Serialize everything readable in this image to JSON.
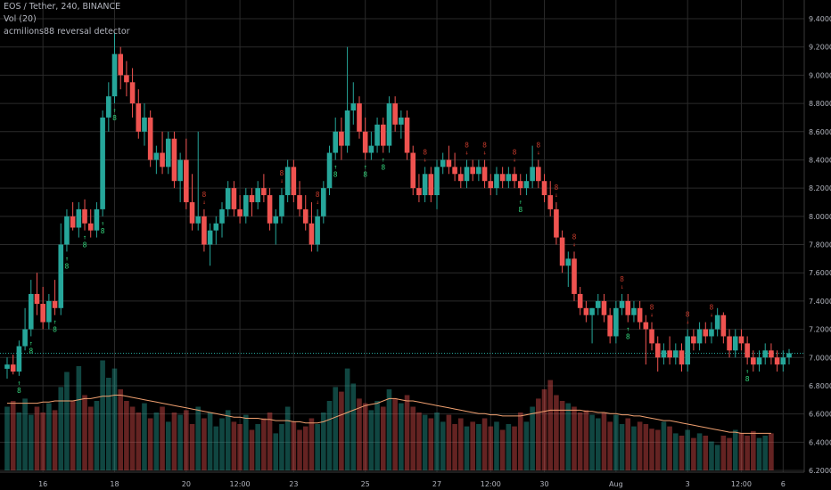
{
  "chart_data": {
    "type": "candlestick",
    "symbol_line": "EOS / Tether, 240, BINANCE",
    "indicators": [
      "Vol (20)",
      "acmilions88 reversal detector"
    ],
    "x_tick_labels": [
      "16",
      "18",
      "20",
      "12:00",
      "23",
      "25",
      "27",
      "12:00",
      "30",
      "Aug",
      "3",
      "12:00",
      "6"
    ],
    "y_tick_labels": [
      "6.2000",
      "6.4000",
      "6.6000",
      "6.8000",
      "7.0000",
      "7.2000",
      "7.4000",
      "7.6000",
      "7.8000",
      "8.0000",
      "8.2000",
      "8.4000",
      "8.6000",
      "8.8000",
      "9.0000",
      "9.2000",
      "9.4000"
    ],
    "ylim": [
      6.2,
      9.4
    ],
    "current_price_level": 7.03,
    "signal_labels": {
      "buy": "8",
      "sell": "8"
    },
    "colors": {
      "up": "#26a69a",
      "down": "#ef5350",
      "grid": "#2a2a2a",
      "axis_text": "#b2b5be",
      "vol_ma": "#f0a070",
      "price_line": "#26a69a",
      "buy_label": "#33d17a",
      "sell_label": "#c0392b"
    },
    "candles": [
      {
        "o": 6.92,
        "h": 7.0,
        "l": 6.85,
        "c": 6.95
      },
      {
        "o": 6.95,
        "h": 7.02,
        "l": 6.88,
        "c": 6.9
      },
      {
        "o": 6.9,
        "h": 7.12,
        "l": 6.87,
        "c": 7.08
      },
      {
        "o": 7.08,
        "h": 7.35,
        "l": 7.05,
        "c": 7.2
      },
      {
        "o": 7.2,
        "h": 7.55,
        "l": 7.15,
        "c": 7.45
      },
      {
        "o": 7.45,
        "h": 7.6,
        "l": 7.3,
        "c": 7.38
      },
      {
        "o": 7.38,
        "h": 7.5,
        "l": 7.2,
        "c": 7.25
      },
      {
        "o": 7.25,
        "h": 7.45,
        "l": 7.2,
        "c": 7.4
      },
      {
        "o": 7.4,
        "h": 7.55,
        "l": 7.3,
        "c": 7.35
      },
      {
        "o": 7.35,
        "h": 7.95,
        "l": 7.3,
        "c": 7.8
      },
      {
        "o": 7.8,
        "h": 8.05,
        "l": 7.75,
        "c": 8.0
      },
      {
        "o": 8.0,
        "h": 8.1,
        "l": 7.9,
        "c": 7.92
      },
      {
        "o": 7.92,
        "h": 8.1,
        "l": 7.85,
        "c": 8.05
      },
      {
        "o": 8.05,
        "h": 8.12,
        "l": 7.9,
        "c": 7.95
      },
      {
        "o": 7.95,
        "h": 8.05,
        "l": 7.85,
        "c": 7.9
      },
      {
        "o": 7.9,
        "h": 8.1,
        "l": 7.85,
        "c": 8.05
      },
      {
        "o": 8.05,
        "h": 8.75,
        "l": 8.0,
        "c": 8.7
      },
      {
        "o": 8.7,
        "h": 8.95,
        "l": 8.6,
        "c": 8.85
      },
      {
        "o": 8.85,
        "h": 9.3,
        "l": 8.8,
        "c": 9.15
      },
      {
        "o": 9.15,
        "h": 9.2,
        "l": 8.9,
        "c": 9.0
      },
      {
        "o": 9.0,
        "h": 9.1,
        "l": 8.85,
        "c": 8.95
      },
      {
        "o": 8.95,
        "h": 9.05,
        "l": 8.7,
        "c": 8.8
      },
      {
        "o": 8.8,
        "h": 8.9,
        "l": 8.55,
        "c": 8.6
      },
      {
        "o": 8.6,
        "h": 8.8,
        "l": 8.5,
        "c": 8.7
      },
      {
        "o": 8.7,
        "h": 8.75,
        "l": 8.35,
        "c": 8.4
      },
      {
        "o": 8.4,
        "h": 8.5,
        "l": 8.3,
        "c": 8.45
      },
      {
        "o": 8.45,
        "h": 8.6,
        "l": 8.3,
        "c": 8.35
      },
      {
        "o": 8.35,
        "h": 8.6,
        "l": 8.3,
        "c": 8.55
      },
      {
        "o": 8.55,
        "h": 8.6,
        "l": 8.2,
        "c": 8.25
      },
      {
        "o": 8.25,
        "h": 8.45,
        "l": 8.1,
        "c": 8.4
      },
      {
        "o": 8.4,
        "h": 8.55,
        "l": 8.05,
        "c": 8.1
      },
      {
        "o": 8.1,
        "h": 8.3,
        "l": 7.9,
        "c": 7.95
      },
      {
        "o": 7.95,
        "h": 8.6,
        "l": 7.9,
        "c": 8.0
      },
      {
        "o": 8.0,
        "h": 8.05,
        "l": 7.75,
        "c": 7.8
      },
      {
        "o": 7.8,
        "h": 7.95,
        "l": 7.65,
        "c": 7.9
      },
      {
        "o": 7.9,
        "h": 8.0,
        "l": 7.8,
        "c": 7.95
      },
      {
        "o": 7.95,
        "h": 8.1,
        "l": 7.85,
        "c": 8.05
      },
      {
        "o": 8.05,
        "h": 8.25,
        "l": 8.0,
        "c": 8.2
      },
      {
        "o": 8.2,
        "h": 8.25,
        "l": 8.0,
        "c": 8.05
      },
      {
        "o": 8.05,
        "h": 8.15,
        "l": 7.95,
        "c": 8.0
      },
      {
        "o": 8.0,
        "h": 8.2,
        "l": 7.95,
        "c": 8.15
      },
      {
        "o": 8.15,
        "h": 8.2,
        "l": 8.0,
        "c": 8.1
      },
      {
        "o": 8.1,
        "h": 8.25,
        "l": 8.05,
        "c": 8.2
      },
      {
        "o": 8.2,
        "h": 8.3,
        "l": 8.1,
        "c": 8.15
      },
      {
        "o": 8.15,
        "h": 8.2,
        "l": 7.9,
        "c": 7.95
      },
      {
        "o": 7.95,
        "h": 8.05,
        "l": 7.8,
        "c": 8.0
      },
      {
        "o": 8.0,
        "h": 8.2,
        "l": 7.95,
        "c": 8.15
      },
      {
        "o": 8.15,
        "h": 8.4,
        "l": 8.1,
        "c": 8.35
      },
      {
        "o": 8.35,
        "h": 8.4,
        "l": 8.1,
        "c": 8.15
      },
      {
        "o": 8.15,
        "h": 8.25,
        "l": 8.0,
        "c": 8.05
      },
      {
        "o": 8.05,
        "h": 8.15,
        "l": 7.9,
        "c": 7.95
      },
      {
        "o": 7.95,
        "h": 8.1,
        "l": 7.75,
        "c": 7.8
      },
      {
        "o": 7.8,
        "h": 8.05,
        "l": 7.75,
        "c": 8.0
      },
      {
        "o": 8.0,
        "h": 8.25,
        "l": 7.95,
        "c": 8.2
      },
      {
        "o": 8.2,
        "h": 8.5,
        "l": 8.15,
        "c": 8.45
      },
      {
        "o": 8.45,
        "h": 8.7,
        "l": 8.4,
        "c": 8.6
      },
      {
        "o": 8.6,
        "h": 8.7,
        "l": 8.4,
        "c": 8.5
      },
      {
        "o": 8.5,
        "h": 9.2,
        "l": 8.45,
        "c": 8.75
      },
      {
        "o": 8.75,
        "h": 8.95,
        "l": 8.65,
        "c": 8.8
      },
      {
        "o": 8.8,
        "h": 8.85,
        "l": 8.55,
        "c": 8.6
      },
      {
        "o": 8.6,
        "h": 8.7,
        "l": 8.4,
        "c": 8.45
      },
      {
        "o": 8.45,
        "h": 8.6,
        "l": 8.4,
        "c": 8.5
      },
      {
        "o": 8.5,
        "h": 8.7,
        "l": 8.45,
        "c": 8.65
      },
      {
        "o": 8.65,
        "h": 8.7,
        "l": 8.45,
        "c": 8.5
      },
      {
        "o": 8.5,
        "h": 8.85,
        "l": 8.45,
        "c": 8.8
      },
      {
        "o": 8.8,
        "h": 8.85,
        "l": 8.6,
        "c": 8.65
      },
      {
        "o": 8.65,
        "h": 8.75,
        "l": 8.55,
        "c": 8.7
      },
      {
        "o": 8.7,
        "h": 8.75,
        "l": 8.4,
        "c": 8.45
      },
      {
        "o": 8.45,
        "h": 8.5,
        "l": 8.15,
        "c": 8.2
      },
      {
        "o": 8.2,
        "h": 8.3,
        "l": 8.1,
        "c": 8.15
      },
      {
        "o": 8.15,
        "h": 8.35,
        "l": 8.1,
        "c": 8.3
      },
      {
        "o": 8.3,
        "h": 8.35,
        "l": 8.1,
        "c": 8.15
      },
      {
        "o": 8.15,
        "h": 8.4,
        "l": 8.05,
        "c": 8.35
      },
      {
        "o": 8.35,
        "h": 8.45,
        "l": 8.3,
        "c": 8.4
      },
      {
        "o": 8.4,
        "h": 8.5,
        "l": 8.3,
        "c": 8.35
      },
      {
        "o": 8.35,
        "h": 8.45,
        "l": 8.25,
        "c": 8.3
      },
      {
        "o": 8.3,
        "h": 8.35,
        "l": 8.2,
        "c": 8.25
      },
      {
        "o": 8.25,
        "h": 8.4,
        "l": 8.2,
        "c": 8.35
      },
      {
        "o": 8.35,
        "h": 8.4,
        "l": 8.25,
        "c": 8.3
      },
      {
        "o": 8.3,
        "h": 8.4,
        "l": 8.25,
        "c": 8.35
      },
      {
        "o": 8.35,
        "h": 8.4,
        "l": 8.2,
        "c": 8.25
      },
      {
        "o": 8.25,
        "h": 8.3,
        "l": 8.15,
        "c": 8.2
      },
      {
        "o": 8.2,
        "h": 8.35,
        "l": 8.15,
        "c": 8.3
      },
      {
        "o": 8.3,
        "h": 8.35,
        "l": 8.2,
        "c": 8.25
      },
      {
        "o": 8.25,
        "h": 8.35,
        "l": 8.2,
        "c": 8.3
      },
      {
        "o": 8.3,
        "h": 8.35,
        "l": 8.2,
        "c": 8.25
      },
      {
        "o": 8.25,
        "h": 8.3,
        "l": 8.15,
        "c": 8.2
      },
      {
        "o": 8.2,
        "h": 8.3,
        "l": 8.15,
        "c": 8.25
      },
      {
        "o": 8.25,
        "h": 8.5,
        "l": 8.2,
        "c": 8.35
      },
      {
        "o": 8.35,
        "h": 8.4,
        "l": 8.2,
        "c": 8.25
      },
      {
        "o": 8.25,
        "h": 8.3,
        "l": 8.1,
        "c": 8.15
      },
      {
        "o": 8.15,
        "h": 8.25,
        "l": 8.0,
        "c": 8.05
      },
      {
        "o": 8.05,
        "h": 8.1,
        "l": 7.8,
        "c": 7.85
      },
      {
        "o": 7.85,
        "h": 7.9,
        "l": 7.6,
        "c": 7.65
      },
      {
        "o": 7.65,
        "h": 7.75,
        "l": 7.5,
        "c": 7.7
      },
      {
        "o": 7.7,
        "h": 7.75,
        "l": 7.4,
        "c": 7.45
      },
      {
        "o": 7.45,
        "h": 7.5,
        "l": 7.3,
        "c": 7.35
      },
      {
        "o": 7.35,
        "h": 7.4,
        "l": 7.25,
        "c": 7.3
      },
      {
        "o": 7.3,
        "h": 7.35,
        "l": 7.1,
        "c": 7.35
      },
      {
        "o": 7.35,
        "h": 7.45,
        "l": 7.3,
        "c": 7.4
      },
      {
        "o": 7.4,
        "h": 7.45,
        "l": 7.25,
        "c": 7.3
      },
      {
        "o": 7.3,
        "h": 7.35,
        "l": 7.1,
        "c": 7.15
      },
      {
        "o": 7.15,
        "h": 7.4,
        "l": 7.1,
        "c": 7.35
      },
      {
        "o": 7.35,
        "h": 7.45,
        "l": 7.3,
        "c": 7.4
      },
      {
        "o": 7.4,
        "h": 7.45,
        "l": 7.25,
        "c": 7.3
      },
      {
        "o": 7.3,
        "h": 7.4,
        "l": 7.25,
        "c": 7.35
      },
      {
        "o": 7.35,
        "h": 7.4,
        "l": 7.2,
        "c": 7.25
      },
      {
        "o": 7.25,
        "h": 7.3,
        "l": 6.95,
        "c": 7.2
      },
      {
        "o": 7.2,
        "h": 7.25,
        "l": 7.05,
        "c": 7.1
      },
      {
        "o": 7.1,
        "h": 7.15,
        "l": 6.9,
        "c": 7.0
      },
      {
        "o": 7.0,
        "h": 7.1,
        "l": 6.95,
        "c": 7.05
      },
      {
        "o": 7.05,
        "h": 7.15,
        "l": 6.95,
        "c": 7.0
      },
      {
        "o": 7.0,
        "h": 7.1,
        "l": 6.95,
        "c": 7.05
      },
      {
        "o": 7.05,
        "h": 7.1,
        "l": 6.9,
        "c": 6.95
      },
      {
        "o": 6.95,
        "h": 7.2,
        "l": 6.9,
        "c": 7.15
      },
      {
        "o": 7.15,
        "h": 7.2,
        "l": 7.05,
        "c": 7.1
      },
      {
        "o": 7.1,
        "h": 7.25,
        "l": 7.05,
        "c": 7.2
      },
      {
        "o": 7.2,
        "h": 7.25,
        "l": 7.1,
        "c": 7.15
      },
      {
        "o": 7.15,
        "h": 7.25,
        "l": 7.1,
        "c": 7.2
      },
      {
        "o": 7.2,
        "h": 7.35,
        "l": 7.15,
        "c": 7.3
      },
      {
        "o": 7.3,
        "h": 7.32,
        "l": 7.1,
        "c": 7.15
      },
      {
        "o": 7.15,
        "h": 7.2,
        "l": 7.0,
        "c": 7.05
      },
      {
        "o": 7.05,
        "h": 7.2,
        "l": 7.0,
        "c": 7.15
      },
      {
        "o": 7.15,
        "h": 7.2,
        "l": 7.05,
        "c": 7.1
      },
      {
        "o": 7.1,
        "h": 7.15,
        "l": 6.95,
        "c": 7.0
      },
      {
        "o": 7.0,
        "h": 7.05,
        "l": 6.9,
        "c": 6.95
      },
      {
        "o": 6.95,
        "h": 7.05,
        "l": 6.9,
        "c": 7.0
      },
      {
        "o": 7.0,
        "h": 7.1,
        "l": 6.95,
        "c": 7.05
      },
      {
        "o": 7.05,
        "h": 7.1,
        "l": 6.95,
        "c": 7.0
      },
      {
        "o": 7.0,
        "h": 7.05,
        "l": 6.9,
        "c": 6.95
      },
      {
        "o": 6.95,
        "h": 7.05,
        "l": 6.9,
        "c": 7.0
      },
      {
        "o": 7.0,
        "h": 7.06,
        "l": 6.95,
        "c": 7.03
      }
    ],
    "volume": [
      0.55,
      0.6,
      0.5,
      0.62,
      0.48,
      0.55,
      0.5,
      0.58,
      0.52,
      0.72,
      0.85,
      0.6,
      0.9,
      0.65,
      0.55,
      0.6,
      0.95,
      0.8,
      0.88,
      0.7,
      0.6,
      0.55,
      0.5,
      0.58,
      0.45,
      0.5,
      0.55,
      0.42,
      0.5,
      0.48,
      0.52,
      0.4,
      0.55,
      0.45,
      0.5,
      0.38,
      0.45,
      0.52,
      0.42,
      0.4,
      0.48,
      0.35,
      0.4,
      0.45,
      0.5,
      0.32,
      0.4,
      0.55,
      0.42,
      0.35,
      0.38,
      0.45,
      0.4,
      0.5,
      0.6,
      0.72,
      0.68,
      0.88,
      0.75,
      0.62,
      0.58,
      0.52,
      0.6,
      0.55,
      0.7,
      0.62,
      0.58,
      0.65,
      0.55,
      0.5,
      0.48,
      0.45,
      0.5,
      0.42,
      0.48,
      0.4,
      0.45,
      0.38,
      0.42,
      0.4,
      0.45,
      0.38,
      0.42,
      0.35,
      0.4,
      0.38,
      0.5,
      0.42,
      0.55,
      0.62,
      0.7,
      0.78,
      0.65,
      0.6,
      0.58,
      0.55,
      0.5,
      0.52,
      0.48,
      0.45,
      0.5,
      0.42,
      0.48,
      0.4,
      0.45,
      0.38,
      0.42,
      0.4,
      0.36,
      0.35,
      0.42,
      0.38,
      0.32,
      0.3,
      0.35,
      0.28,
      0.32,
      0.3,
      0.25,
      0.22,
      0.3,
      0.28,
      0.35,
      0.32,
      0.3,
      0.34,
      0.28,
      0.3,
      0.32
    ],
    "vol_ma": [
      0.58,
      0.58,
      0.58,
      0.58,
      0.58,
      0.58,
      0.59,
      0.59,
      0.6,
      0.6,
      0.6,
      0.6,
      0.61,
      0.62,
      0.62,
      0.63,
      0.64,
      0.64,
      0.65,
      0.65,
      0.64,
      0.63,
      0.62,
      0.61,
      0.6,
      0.59,
      0.58,
      0.57,
      0.56,
      0.55,
      0.54,
      0.53,
      0.52,
      0.51,
      0.5,
      0.49,
      0.48,
      0.47,
      0.46,
      0.46,
      0.45,
      0.45,
      0.45,
      0.44,
      0.44,
      0.43,
      0.43,
      0.43,
      0.42,
      0.42,
      0.41,
      0.41,
      0.41,
      0.42,
      0.44,
      0.46,
      0.48,
      0.5,
      0.52,
      0.54,
      0.56,
      0.57,
      0.58,
      0.6,
      0.62,
      0.62,
      0.61,
      0.6,
      0.6,
      0.59,
      0.58,
      0.57,
      0.56,
      0.55,
      0.54,
      0.53,
      0.52,
      0.51,
      0.5,
      0.49,
      0.49,
      0.48,
      0.48,
      0.47,
      0.47,
      0.47,
      0.47,
      0.48,
      0.49,
      0.5,
      0.51,
      0.52,
      0.52,
      0.52,
      0.52,
      0.52,
      0.52,
      0.51,
      0.51,
      0.5,
      0.5,
      0.49,
      0.49,
      0.48,
      0.48,
      0.47,
      0.47,
      0.46,
      0.45,
      0.44,
      0.43,
      0.43,
      0.42,
      0.41,
      0.4,
      0.39,
      0.38,
      0.37,
      0.36,
      0.35,
      0.34,
      0.33,
      0.33,
      0.32,
      0.32,
      0.32,
      0.32,
      0.32,
      0.32
    ],
    "buy_signals": [
      2,
      4,
      8,
      10,
      13,
      16,
      18,
      55,
      60,
      63,
      86,
      104,
      124
    ],
    "sell_signals": [
      33,
      46,
      52,
      70,
      77,
      80,
      85,
      89,
      92,
      95,
      103,
      108,
      114,
      118
    ]
  }
}
